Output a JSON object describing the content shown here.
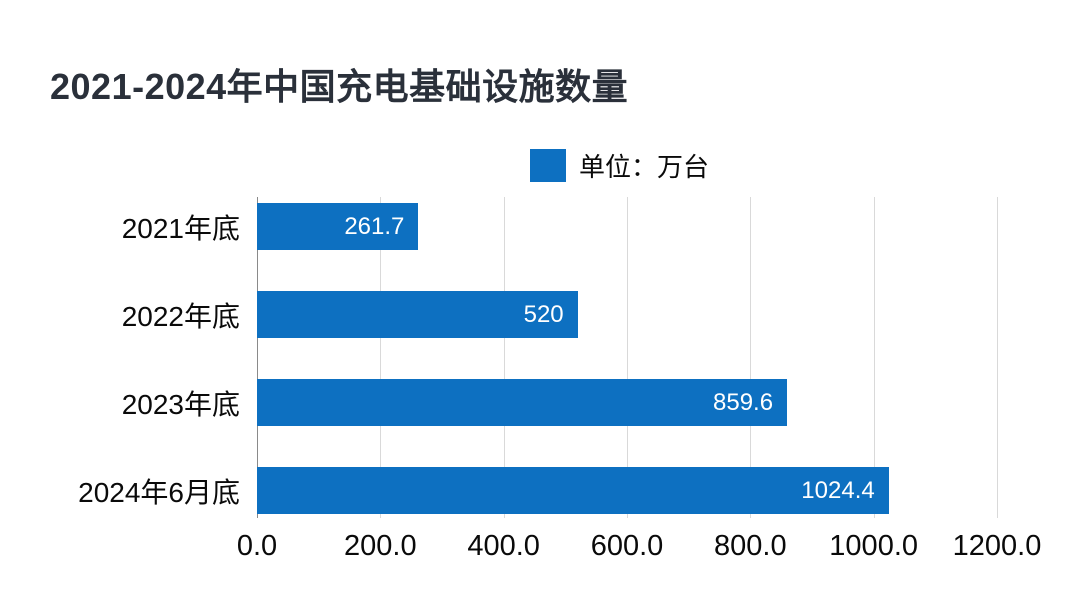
{
  "page": {
    "background_color": "#ffffff"
  },
  "title": {
    "text": "2021-2024年中国充电基础设施数量",
    "color": "#2a303a"
  },
  "legend": {
    "label": "单位：万台",
    "swatch_color": "#0d70c1"
  },
  "chart_data": {
    "type": "bar",
    "orientation": "horizontal",
    "title": "2021-2024年中国充电基础设施数量",
    "unit": "万台",
    "legend_label": "单位：万台",
    "legend_position": "top-center",
    "categories": [
      "2021年底",
      "2022年底",
      "2023年底",
      "2024年6月底"
    ],
    "values": [
      261.7,
      520,
      859.6,
      1024.4
    ],
    "value_labels": [
      "261.7",
      "520",
      "859.6",
      "1024.4"
    ],
    "xlabel": "",
    "ylabel": "",
    "xlim": [
      0,
      1200
    ],
    "x_ticks": [
      0,
      200,
      400,
      600,
      800,
      1000,
      1200
    ],
    "x_tick_labels": [
      "0.0",
      "200.0",
      "400.0",
      "600.0",
      "800.0",
      "1000.0",
      "1200.0"
    ],
    "grid": true,
    "grid_color": "#d9d9d9",
    "zero_line_color": "#8a8a8a",
    "bar_color": "#0d70c1",
    "value_label_color": "#ffffff",
    "text_color": "#0a0a0a"
  }
}
